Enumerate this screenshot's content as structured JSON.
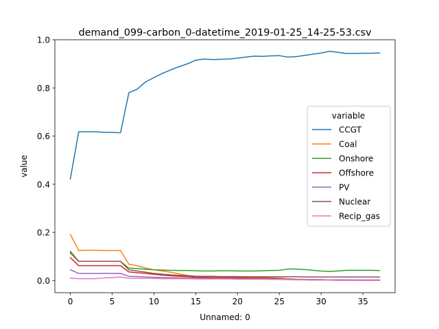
{
  "chart_data": {
    "type": "line",
    "title": "demand_099-carbon_0-datetime_2019-01-25_14-25-53.csv",
    "xlabel": "Unnamed: 0",
    "ylabel": "value",
    "xlim": [
      -1.85,
      38.85
    ],
    "ylim": [
      -0.05,
      1.0
    ],
    "xticks": [
      0,
      5,
      10,
      15,
      20,
      25,
      30,
      35
    ],
    "yticks": [
      0.0,
      0.2,
      0.4,
      0.6,
      0.8,
      1.0
    ],
    "ytick_labels": [
      "0.0",
      "0.2",
      "0.4",
      "0.6",
      "0.8",
      "1.0"
    ],
    "grid": false,
    "legend": {
      "title": "variable",
      "placement": "center-right"
    },
    "x": [
      0,
      1,
      2,
      3,
      4,
      5,
      6,
      7,
      8,
      9,
      10,
      11,
      12,
      13,
      14,
      15,
      16,
      17,
      18,
      19,
      20,
      21,
      22,
      23,
      24,
      25,
      26,
      27,
      28,
      29,
      30,
      31,
      32,
      33,
      34,
      35,
      36,
      37
    ],
    "series": [
      {
        "name": "CCGT",
        "color": "#1f77b4",
        "values": [
          0.422,
          0.618,
          0.618,
          0.618,
          0.616,
          0.615,
          0.614,
          0.78,
          0.795,
          0.825,
          0.843,
          0.86,
          0.875,
          0.888,
          0.9,
          0.915,
          0.92,
          0.918,
          0.919,
          0.92,
          0.924,
          0.928,
          0.932,
          0.931,
          0.933,
          0.934,
          0.928,
          0.93,
          0.935,
          0.94,
          0.945,
          0.952,
          0.948,
          0.943,
          0.943,
          0.944,
          0.944,
          0.945
        ]
      },
      {
        "name": "Coal",
        "color": "#ff7f0e",
        "values": [
          0.192,
          0.125,
          0.126,
          0.126,
          0.125,
          0.125,
          0.125,
          0.068,
          0.062,
          0.052,
          0.045,
          0.04,
          0.035,
          0.028,
          0.022,
          0.018,
          0.016,
          0.015,
          0.015,
          0.014,
          0.014,
          0.013,
          0.012,
          0.012,
          0.011,
          0.01,
          0.008,
          0.006,
          0.005,
          0.004,
          0.003,
          0.002,
          0.002,
          0.002,
          0.002,
          0.001,
          0.001,
          0.001
        ]
      },
      {
        "name": "Onshore",
        "color": "#2ca02c",
        "values": [
          0.122,
          0.08,
          0.08,
          0.08,
          0.08,
          0.08,
          0.08,
          0.052,
          0.05,
          0.047,
          0.045,
          0.044,
          0.043,
          0.042,
          0.042,
          0.041,
          0.04,
          0.04,
          0.041,
          0.041,
          0.04,
          0.04,
          0.04,
          0.041,
          0.042,
          0.043,
          0.048,
          0.048,
          0.046,
          0.043,
          0.04,
          0.038,
          0.04,
          0.043,
          0.043,
          0.043,
          0.043,
          0.042
        ]
      },
      {
        "name": "Offshore",
        "color": "#d62728",
        "values": [
          0.095,
          0.062,
          0.062,
          0.062,
          0.062,
          0.062,
          0.062,
          0.036,
          0.033,
          0.03,
          0.026,
          0.023,
          0.02,
          0.018,
          0.016,
          0.014,
          0.013,
          0.012,
          0.012,
          0.012,
          0.011,
          0.011,
          0.01,
          0.01,
          0.01,
          0.009,
          0.006,
          0.005,
          0.004,
          0.004,
          0.004,
          0.003,
          0.003,
          0.003,
          0.002,
          0.002,
          0.002,
          0.002
        ]
      },
      {
        "name": "PV",
        "color": "#9467bd",
        "values": [
          0.045,
          0.03,
          0.03,
          0.03,
          0.03,
          0.03,
          0.03,
          0.018,
          0.017,
          0.015,
          0.014,
          0.013,
          0.012,
          0.011,
          0.01,
          0.01,
          0.009,
          0.009,
          0.009,
          0.009,
          0.008,
          0.008,
          0.008,
          0.008,
          0.007,
          0.007,
          0.006,
          0.005,
          0.004,
          0.004,
          0.003,
          0.003,
          0.003,
          0.003,
          0.003,
          0.003,
          0.003,
          0.003
        ]
      },
      {
        "name": "Nuclear",
        "color": "#8c564b",
        "values": [
          0.115,
          0.08,
          0.08,
          0.08,
          0.08,
          0.08,
          0.08,
          0.045,
          0.04,
          0.035,
          0.03,
          0.027,
          0.024,
          0.022,
          0.02,
          0.018,
          0.018,
          0.018,
          0.017,
          0.017,
          0.017,
          0.016,
          0.016,
          0.016,
          0.016,
          0.016,
          0.016,
          0.016,
          0.015,
          0.015,
          0.015,
          0.015,
          0.015,
          0.015,
          0.015,
          0.015,
          0.015,
          0.015
        ]
      },
      {
        "name": "Recip_gas",
        "color": "#e377c2",
        "values": [
          0.01,
          0.008,
          0.008,
          0.008,
          0.011,
          0.013,
          0.015,
          0.01,
          0.01,
          0.009,
          0.009,
          0.008,
          0.008,
          0.008,
          0.008,
          0.007,
          0.007,
          0.007,
          0.007,
          0.007,
          0.006,
          0.006,
          0.006,
          0.006,
          0.005,
          0.005,
          0.004,
          0.003,
          0.003,
          0.002,
          0.002,
          0.002,
          0.001,
          0.001,
          0.001,
          0.001,
          0.001,
          0.001
        ]
      }
    ]
  }
}
